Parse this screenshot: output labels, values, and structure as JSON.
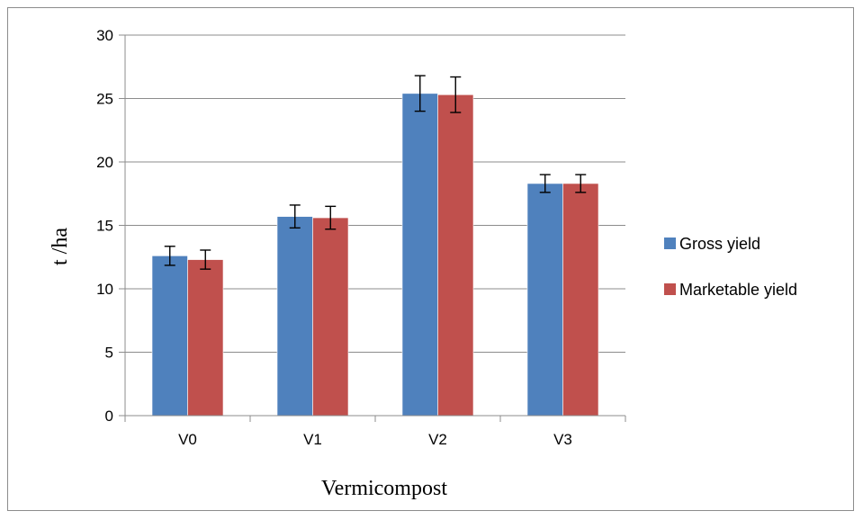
{
  "chart_data": {
    "type": "bar",
    "title": "",
    "xlabel": "Vermicompost",
    "ylabel": "t /ha",
    "categories": [
      "V0",
      "V1",
      "V2",
      "V3"
    ],
    "series": [
      {
        "name": "Gross yield",
        "color": "#4f81bd",
        "values": [
          12.6,
          15.7,
          25.4,
          18.3
        ],
        "errors": [
          0.75,
          0.9,
          1.4,
          0.7
        ]
      },
      {
        "name": "Marketable yield",
        "color": "#c0504d",
        "values": [
          12.3,
          15.6,
          25.3,
          18.3
        ],
        "errors": [
          0.75,
          0.9,
          1.4,
          0.7
        ]
      }
    ],
    "ylim": [
      0,
      30
    ],
    "yticks": [
      "0",
      "5",
      "10",
      "15",
      "20",
      "25",
      "30"
    ],
    "grid": true,
    "legend_position": "right"
  }
}
